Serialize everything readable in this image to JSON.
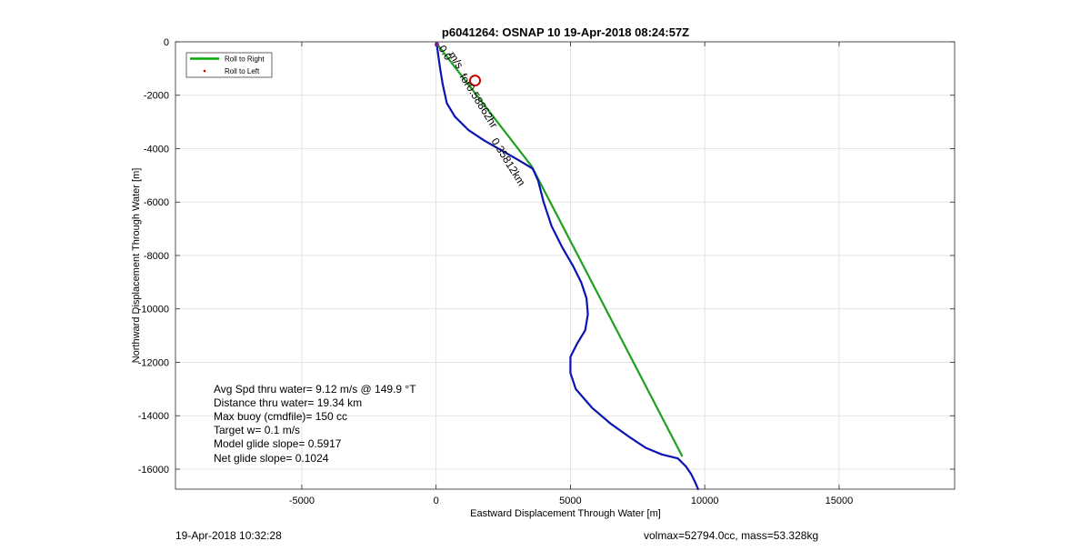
{
  "chart_data": {
    "type": "line",
    "title": "p6041264: OSNAP 10 19-Apr-2018 08:24:57Z",
    "xlabel": "Eastward Displacement Through Water [m]",
    "ylabel": "Northward Displacement Through Water [m]",
    "xlim": [
      -9700,
      19300
    ],
    "ylim": [
      -16750,
      0
    ],
    "xticks": [
      -5000,
      0,
      5000,
      10000,
      15000
    ],
    "xtick_labels": [
      "-5000",
      "0",
      "5000",
      "10000",
      "15000"
    ],
    "yticks": [
      0,
      -2000,
      -4000,
      -6000,
      -8000,
      -10000,
      -12000,
      -14000,
      -16000
    ],
    "ytick_labels": [
      "0",
      "-2000",
      "-4000",
      "-6000",
      "-8000",
      "-10000",
      "-12000",
      "-14000",
      "-16000"
    ],
    "grid": true,
    "legend": {
      "placement": "top-left",
      "entries": [
        {
          "name": "Roll to Right",
          "color": "#00aa00",
          "style": "line"
        },
        {
          "name": "Roll to Left",
          "color": "#cc0000",
          "style": "dot"
        }
      ]
    },
    "series": [
      {
        "name": "Roll to Right",
        "color": "#1fa01f",
        "x": [
          50,
          3550,
          9150
        ],
        "y": [
          -100,
          -4650,
          -15500
        ]
      },
      {
        "color": "#0a14b4",
        "x": [
          30,
          80,
          150,
          250,
          400,
          700,
          1200,
          1800,
          2500,
          3100,
          3600,
          3800,
          4000,
          4300,
          4700,
          5100,
          5400,
          5600,
          5650,
          5550,
          5250,
          5000,
          5000,
          5200,
          5800,
          6500,
          7200,
          7800,
          8400,
          9000,
          9300,
          9500,
          9650,
          9750
        ],
        "y": [
          -100,
          -500,
          -1000,
          -1600,
          -2300,
          -2800,
          -3300,
          -3700,
          -4100,
          -4450,
          -4750,
          -5200,
          -6000,
          -6900,
          -7700,
          -8400,
          -9000,
          -9600,
          -10200,
          -10800,
          -11300,
          -11800,
          -12400,
          -13000,
          -13700,
          -14300,
          -14800,
          -15200,
          -15450,
          -15600,
          -15900,
          -16200,
          -16500,
          -16750
        ]
      }
    ],
    "markers": [
      {
        "type": "circle",
        "color": "#cc0000",
        "x": 1450,
        "y": -1450
      }
    ],
    "annotations": {
      "slanted": [
        "0.0",
        "m/s",
        "for0.58862hr",
        "0.35812km"
      ],
      "stats": [
        "Avg Spd thru water=  9.12 m/s @ 149.9 °T",
        "Distance thru water= 19.34 km",
        "Max buoy (cmdfile)= 150 cc",
        "Target w= 0.1 m/s",
        "Model glide slope= 0.5917",
        "Net glide slope= 0.1024"
      ]
    }
  },
  "footer": {
    "left": "19-Apr-2018 10:32:28",
    "right": "volmax=52794.0cc, mass=53.328kg"
  }
}
